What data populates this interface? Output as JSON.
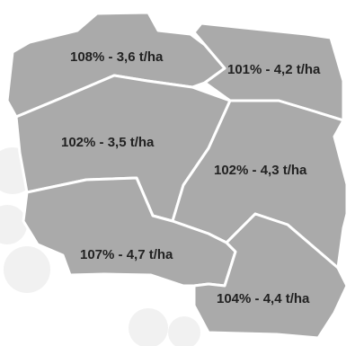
{
  "map": {
    "region_fill": "#aaaaaa",
    "border_color": "#ffffff",
    "label_color": "#222222",
    "regions": [
      {
        "id": "north-west",
        "percent": "108%",
        "yield": "3,6 t/ha",
        "label": "108% - 3,6 t/ha"
      },
      {
        "id": "north-east",
        "percent": "101%",
        "yield": "4,2 t/ha",
        "label": "101% - 4,2 t/ha"
      },
      {
        "id": "central-west",
        "percent": "102%",
        "yield": "3,5 t/ha",
        "label": "102% - 3,5 t/ha"
      },
      {
        "id": "east",
        "percent": "102%",
        "yield": "4,3 t/ha",
        "label": "102% - 4,3 t/ha"
      },
      {
        "id": "south-west",
        "percent": "107%",
        "yield": "4,7 t/ha",
        "label": "107% - 4,7 t/ha"
      },
      {
        "id": "south-east",
        "percent": "104%",
        "yield": "4,4 t/ha",
        "label": "104% - 4,4 t/ha"
      }
    ]
  }
}
